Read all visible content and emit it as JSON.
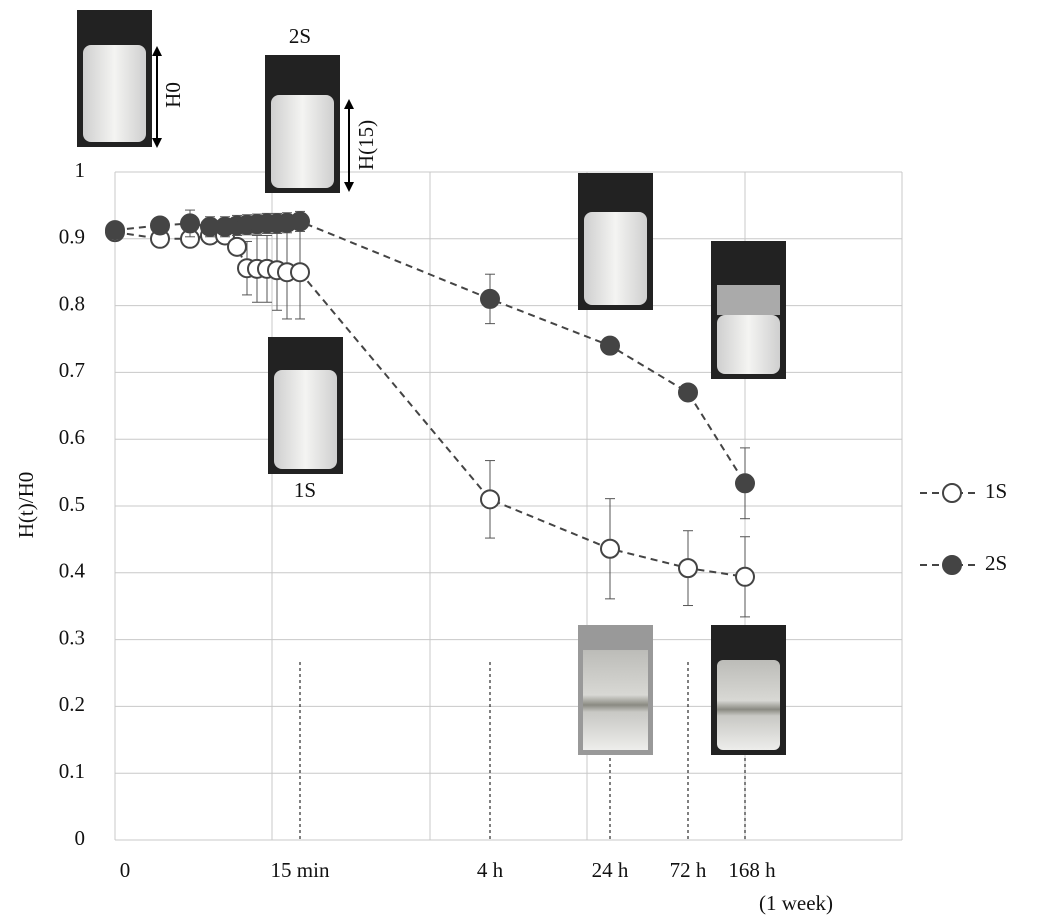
{
  "chart_data": {
    "type": "line",
    "y_label": "H(t)/H0",
    "categories": [
      "0",
      null,
      null,
      null,
      null,
      null,
      null,
      null,
      null,
      null,
      null,
      "15 min",
      "4 h",
      "24 h",
      "72 h",
      "168 h"
    ],
    "x_label_note": "(1 week)",
    "ylim": [
      0,
      1
    ],
    "yticks": [
      0,
      0.1,
      0.2,
      0.3,
      0.4,
      0.5,
      0.6,
      0.7,
      0.8,
      0.9,
      1
    ],
    "grid": true,
    "series": [
      {
        "name": "1S",
        "color": "#444444",
        "marker": "open",
        "values": [
          0.91,
          0.9,
          0.9,
          0.905,
          0.905,
          0.888,
          0.856,
          0.855,
          0.855,
          0.853,
          0.85,
          0.85,
          0.51,
          0.436,
          0.407,
          0.394
        ],
        "errors": [
          0.01,
          0.01,
          0.01,
          0.01,
          0.01,
          0.01,
          0.04,
          0.05,
          0.05,
          0.06,
          0.07,
          0.07,
          0.058,
          0.075,
          0.056,
          0.06
        ]
      },
      {
        "name": "2S",
        "color": "#444444",
        "marker": "filled",
        "values": [
          0.913,
          0.92,
          0.923,
          0.918,
          0.918,
          0.92,
          0.921,
          0.922,
          0.923,
          0.923,
          0.924,
          0.926,
          0.81,
          0.74,
          0.67,
          0.534
        ],
        "errors": [
          0.01,
          0.01,
          0.02,
          0.015,
          0.015,
          0.015,
          0.015,
          0.015,
          0.015,
          0.015,
          0.015,
          0.015,
          0.037,
          0.01,
          0.01,
          0.053
        ]
      }
    ],
    "annotations": [
      "H0",
      "H(15)",
      "2S",
      "1S"
    ]
  }
}
